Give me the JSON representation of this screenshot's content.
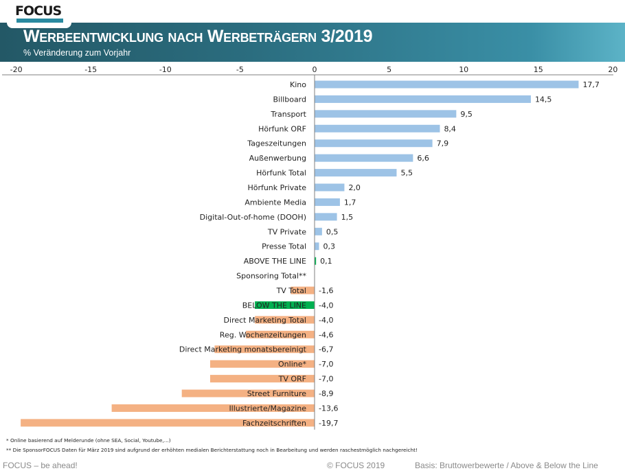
{
  "header": {
    "logo": "FOCUS",
    "title": "Werbeentwicklung nach Werbeträgern 3/2019",
    "subtitle": "% Veränderung zum Vorjahr"
  },
  "colors": {
    "positive": "#9dc3e6",
    "negative": "#f4b183",
    "highlight": "#00b050",
    "axis": "#7f7f7f"
  },
  "chart_data": {
    "type": "bar",
    "orientation": "horizontal",
    "title": "Werbeentwicklung nach Werbeträgern 3/2019",
    "subtitle": "% Veränderung zum Vorjahr",
    "xlabel": "",
    "ylabel": "",
    "xlim": [
      -20,
      20
    ],
    "xticks": [
      -20,
      -15,
      -10,
      -5,
      0,
      5,
      10,
      15,
      20
    ],
    "xtick_labels": [
      "-20",
      "-15",
      "-10",
      "-5",
      "0",
      "5",
      "10",
      "15",
      "20"
    ],
    "axis_position": "top",
    "grid": false,
    "legend": "none",
    "categories": [
      "Kino",
      "Billboard",
      "Transport",
      "Hörfunk ORF",
      "Tageszeitungen",
      "Außenwerbung",
      "Hörfunk Total",
      "Hörfunk Private",
      "Ambiente Media",
      "Digital-Out-of-home (DOOH)",
      "TV Private",
      "Presse Total",
      "ABOVE THE LINE",
      "Sponsoring Total**",
      "TV Total",
      "BELOW THE LINE",
      "Direct Marketing Total",
      "Reg. Wochenzeitungen",
      "Direct Marketing monatsbereinigt",
      "Online*",
      "TV ORF",
      "Street Furniture",
      "Illustrierte/Magazine",
      "Fachzeitschriften"
    ],
    "values": [
      17.7,
      14.5,
      9.5,
      8.4,
      7.9,
      6.6,
      5.5,
      2.0,
      1.7,
      1.5,
      0.5,
      0.3,
      0.1,
      null,
      -1.6,
      -4.0,
      -4.0,
      -4.6,
      -6.7,
      -7.0,
      -7.0,
      -8.9,
      -13.6,
      -19.7
    ],
    "value_labels": [
      "17,7",
      "14,5",
      "9,5",
      "8,4",
      "7,9",
      "6,6",
      "5,5",
      "2,0",
      "1,7",
      "1,5",
      "0,5",
      "0,3",
      "0,1",
      "",
      "-1,6",
      "-4,0",
      "-4,0",
      "-4,6",
      "-6,7",
      "-7,0",
      "-7,0",
      "-8,9",
      "-13,6",
      "-19,7"
    ],
    "highlighted": [
      "ABOVE THE LINE",
      "BELOW THE LINE"
    ]
  },
  "footnotes": [
    "* Online basierend auf Melderunde (ohne SEA, Social, Youtube,...)",
    "** Die SponsorFOCUS Daten für März 2019 sind aufgrund der erhöhten medialen Berichterstattung noch in Bearbeitung und werden raschestmöglich nachgereicht!"
  ],
  "footer": {
    "tagline": "FOCUS – be ahead!",
    "copyright": "© FOCUS 2019",
    "basis": "Basis: Bruttowerbewerte / Above & Below the Line"
  }
}
